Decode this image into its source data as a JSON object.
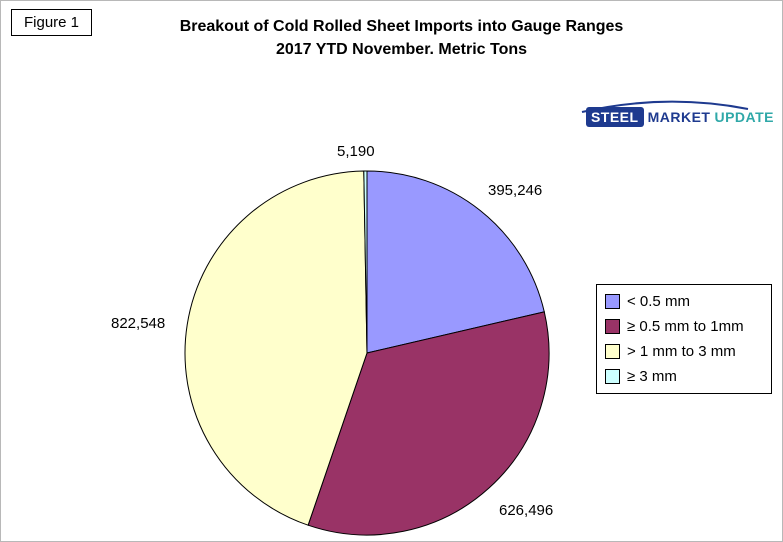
{
  "figure_label": "Figure 1",
  "title": {
    "line1": "Breakout of Cold Rolled Sheet Imports into Gauge Ranges",
    "line2": "2017 YTD November. Metric Tons"
  },
  "logo": {
    "steel": "STEEL",
    "market": "MARKET",
    "update": "UPDATE",
    "blue": "#1e3a8f",
    "teal": "#2fa8a8"
  },
  "chart_data": {
    "type": "pie",
    "title": "Breakout of Cold Rolled Sheet Imports into Gauge Ranges 2017 YTD November. Metric Tons",
    "categories": [
      "< 0.5 mm",
      "≥ 0.5 mm to 1mm",
      "> 1 mm to 3 mm",
      "≥ 3 mm"
    ],
    "values": [
      395246,
      626496,
      822548,
      5190
    ],
    "value_labels": [
      "395,246",
      "626,496",
      "822,548",
      "5,190"
    ],
    "colors": [
      "#9999ff",
      "#993366",
      "#ffffcc",
      "#ccffff"
    ],
    "total": 1849480,
    "start_angle_deg": 0,
    "direction": "clockwise",
    "legend_position": "right",
    "slice_border_color": "#000000"
  }
}
